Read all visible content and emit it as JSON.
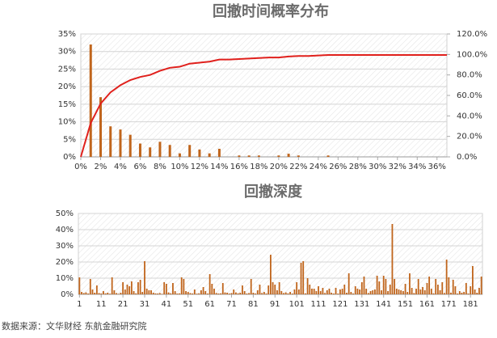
{
  "chart_data": [
    {
      "type": "combo",
      "title": "回撤时间概率分布",
      "x": [
        0,
        1,
        2,
        3,
        4,
        5,
        6,
        7,
        8,
        9,
        10,
        11,
        12,
        13,
        14,
        15,
        16,
        17,
        18,
        19,
        20,
        21,
        22,
        23,
        24,
        25,
        26,
        27,
        28,
        29,
        30,
        31,
        32,
        33,
        34,
        35,
        36,
        37
      ],
      "series": [
        {
          "type": "bar",
          "color": "#c0651c",
          "values": [
            null,
            32,
            17,
            8.7,
            7.8,
            6.3,
            3.8,
            2.7,
            4.3,
            3.4,
            1,
            3.4,
            2.1,
            1,
            2.3,
            null,
            0.4,
            0.4,
            0.4,
            null,
            0.4,
            0.9,
            0.4,
            null,
            null,
            0.4,
            null,
            null,
            null,
            null,
            null,
            null,
            null,
            null,
            null,
            null,
            null,
            null
          ]
        },
        {
          "type": "line",
          "color": "#e0201c",
          "axis": "y2",
          "values": [
            0,
            33,
            52,
            63,
            70,
            75,
            78,
            80,
            84,
            87,
            88,
            91,
            92,
            93,
            95,
            95,
            95.5,
            96,
            96.5,
            97,
            97,
            98,
            98.5,
            98.5,
            99,
            99.5,
            99.5,
            99.5,
            99.5,
            99.5,
            99.5,
            99.5,
            99.5,
            99.5,
            99.5,
            99.5,
            99.5,
            99.5
          ]
        }
      ],
      "xlim": [
        0,
        37
      ],
      "xticks": [
        {
          "value": 0,
          "label": "0%"
        },
        {
          "value": 2,
          "label": "2%"
        },
        {
          "value": 4,
          "label": "4%"
        },
        {
          "value": 6,
          "label": "6%"
        },
        {
          "value": 8,
          "label": "8%"
        },
        {
          "value": 10,
          "label": "10%"
        },
        {
          "value": 12,
          "label": "12%"
        },
        {
          "value": 14,
          "label": "14%"
        },
        {
          "value": 16,
          "label": "16%"
        },
        {
          "value": 18,
          "label": "18%"
        },
        {
          "value": 20,
          "label": "20%"
        },
        {
          "value": 22,
          "label": "22%"
        },
        {
          "value": 24,
          "label": "24%"
        },
        {
          "value": 26,
          "label": "26%"
        },
        {
          "value": 28,
          "label": "28%"
        },
        {
          "value": 30,
          "label": "30%"
        },
        {
          "value": 32,
          "label": "32%"
        },
        {
          "value": 34,
          "label": "34%"
        },
        {
          "value": 36,
          "label": "36%"
        }
      ],
      "ylim": [
        0,
        35
      ],
      "yticks": [
        {
          "value": 0,
          "label": "0%"
        },
        {
          "value": 5,
          "label": "5%"
        },
        {
          "value": 10,
          "label": "10%"
        },
        {
          "value": 15,
          "label": "15%"
        },
        {
          "value": 20,
          "label": "20%"
        },
        {
          "value": 25,
          "label": "25%"
        },
        {
          "value": 30,
          "label": "30%"
        },
        {
          "value": 35,
          "label": "35%"
        }
      ],
      "y2lim": [
        0,
        120
      ],
      "y2ticks": [
        {
          "value": 0,
          "label": "0.0%"
        },
        {
          "value": 20,
          "label": "20.0%"
        },
        {
          "value": 40,
          "label": "40.0%"
        },
        {
          "value": 60,
          "label": "60.0%"
        },
        {
          "value": 80,
          "label": "80.0%"
        },
        {
          "value": 100,
          "label": "100.0%"
        },
        {
          "value": 120,
          "label": "120.0%"
        }
      ],
      "grid": true
    },
    {
      "type": "bar",
      "title": "回撤深度",
      "color": "#c0651c",
      "x": [
        1,
        2,
        3,
        4,
        5,
        6,
        7,
        8,
        9,
        10,
        11,
        12,
        13,
        14,
        15,
        16,
        17,
        18,
        19,
        20,
        21,
        22,
        23,
        24,
        25,
        26,
        27,
        28,
        29,
        30,
        31,
        32,
        33,
        34,
        35,
        36,
        37,
        38,
        39,
        40,
        41,
        42,
        43,
        44,
        45,
        46,
        47,
        48,
        49,
        50,
        51,
        52,
        53,
        54,
        55,
        56,
        57,
        58,
        59,
        60,
        61,
        62,
        63,
        64,
        65,
        66,
        67,
        68,
        69,
        70,
        71,
        72,
        73,
        74,
        75,
        76,
        77,
        78,
        79,
        80,
        81,
        82,
        83,
        84,
        85,
        86,
        87,
        88,
        89,
        90,
        91,
        92,
        93,
        94,
        95,
        96,
        97,
        98,
        99,
        100,
        101,
        102,
        103,
        104,
        105,
        106,
        107,
        108,
        109,
        110,
        111,
        112,
        113,
        114,
        115,
        116,
        117,
        118,
        119,
        120,
        121,
        122,
        123,
        124,
        125,
        126,
        127,
        128,
        129,
        130,
        131,
        132,
        133,
        134,
        135,
        136,
        137,
        138,
        139,
        140,
        141,
        142,
        143,
        144,
        145,
        146,
        147,
        148,
        149,
        150,
        151,
        152,
        153,
        154,
        155,
        156,
        157,
        158,
        159,
        160,
        161,
        162,
        163,
        164,
        165,
        166,
        167,
        168,
        169,
        170,
        171,
        172,
        173,
        174,
        175,
        176,
        177,
        178,
        179,
        180,
        181,
        182,
        183,
        184,
        185,
        186
      ],
      "values": [
        10.5,
        1.5,
        0.8,
        1.2,
        0.5,
        9.5,
        3,
        1,
        5.5,
        0.8,
        0.5,
        2,
        0.6,
        1,
        0.4,
        10.5,
        2.5,
        0.8,
        0.3,
        1,
        7.5,
        3,
        6,
        5,
        8,
        2,
        0.6,
        7.5,
        9,
        1.5,
        20.5,
        3.5,
        2.5,
        2.5,
        1,
        0.6,
        0.5,
        0.8,
        0.3,
        7.5,
        6.5,
        1.2,
        0.6,
        7,
        2,
        0.5,
        0.6,
        10.5,
        9.5,
        2,
        1.5,
        0.8,
        0.5,
        3,
        0.4,
        0.6,
        2.5,
        4.5,
        2,
        0.5,
        12.5,
        6.5,
        3.5,
        0.8,
        0.5,
        0.6,
        7,
        1.2,
        1,
        0.5,
        0.8,
        3,
        1.2,
        0.6,
        1,
        5.5,
        2,
        0.5,
        0.8,
        9.5,
        1,
        0.5,
        2.5,
        6,
        0.8,
        1.5,
        0.5,
        5.5,
        24.5,
        7.5,
        6,
        2.5,
        7.5,
        2,
        0.8,
        1.2,
        0.6,
        1.5,
        0.5,
        3,
        7.5,
        3,
        19.5,
        20.5,
        0.6,
        10,
        6,
        3.5,
        3.5,
        2,
        5,
        2,
        4,
        0.8,
        2.5,
        3.5,
        1,
        0.5,
        4,
        0.5,
        3,
        3.5,
        6,
        1,
        13,
        1.5,
        0.5,
        5,
        3.5,
        3,
        7.5,
        11,
        3.5,
        0.8,
        2,
        2.5,
        3,
        11.5,
        8,
        2.5,
        11.5,
        9.5,
        2,
        6,
        43.5,
        9.5,
        3.5,
        3,
        2.5,
        2,
        6.5,
        1.5,
        13,
        4,
        0.8,
        3.5,
        9.5,
        3,
        4.5,
        2.5,
        7,
        11,
        3.5,
        0.6,
        9.5,
        6,
        2.5,
        7.5,
        0.8,
        21.5,
        10.5,
        1,
        9,
        5,
        0.5,
        2,
        1,
        1.5,
        7,
        0.5,
        5,
        17.5,
        3,
        1,
        4,
        11
      ],
      "xlim": [
        0.5,
        186.5
      ],
      "xticks": [
        1,
        11,
        21,
        31,
        41,
        51,
        61,
        71,
        81,
        91,
        101,
        111,
        121,
        131,
        141,
        151,
        161,
        171,
        181
      ],
      "ylim": [
        0,
        50
      ],
      "yticks": [
        {
          "value": 0,
          "label": "0%"
        },
        {
          "value": 10,
          "label": "10%"
        },
        {
          "value": 20,
          "label": "20%"
        },
        {
          "value": 30,
          "label": "30%"
        },
        {
          "value": 40,
          "label": "40%"
        },
        {
          "value": 50,
          "label": "50%"
        }
      ],
      "grid": true
    }
  ],
  "source": "数据来源：文华财经 东航金融研究院"
}
